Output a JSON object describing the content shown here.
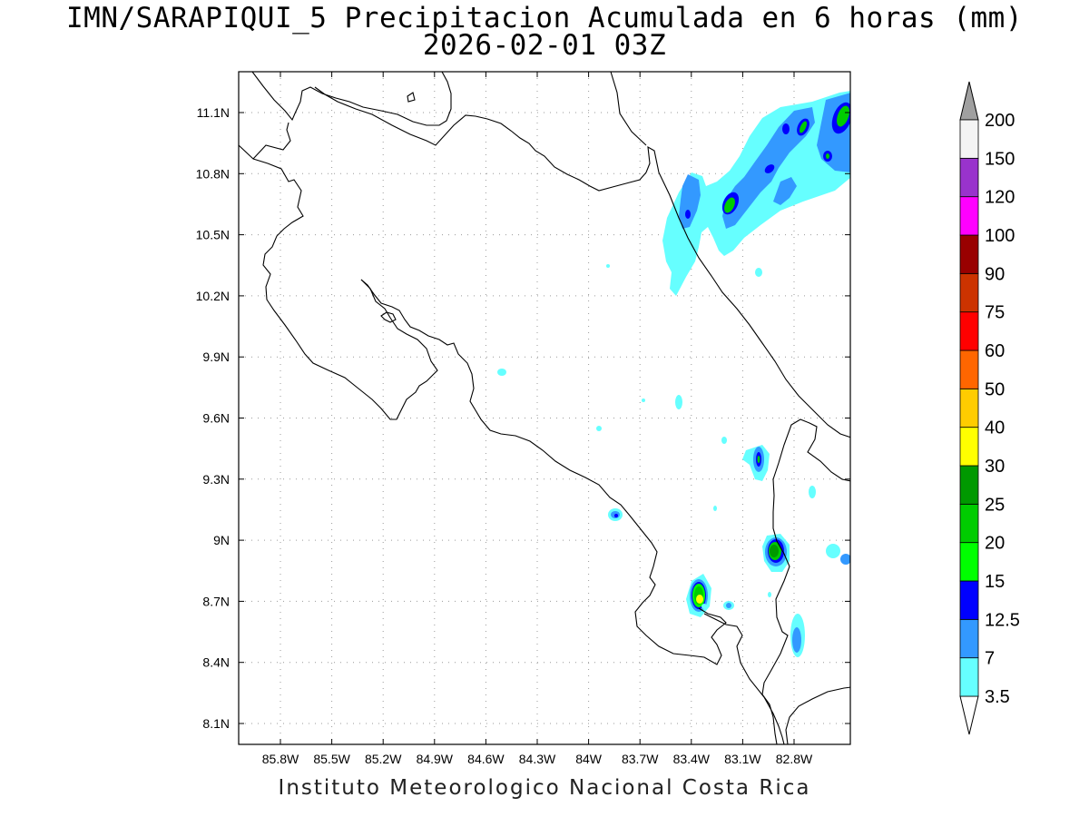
{
  "map": {
    "title_line1": "IMN/SARAPIQUI_5 Precipitacion Acumulada en 6 horas (mm)",
    "title_line2": "2026-02-01 03Z",
    "footer": "Instituto Meteorologico Nacional Costa Rica",
    "lon_ticks": [
      "85.8W",
      "85.5W",
      "85.2W",
      "84.9W",
      "84.6W",
      "84.3W",
      "84W",
      "83.7W",
      "83.4W",
      "83.1W",
      "82.8W"
    ],
    "lat_ticks": [
      "11.1N",
      "10.8N",
      "10.5N",
      "10.2N",
      "9.9N",
      "9.6N",
      "9.3N",
      "9N",
      "8.7N",
      "8.4N",
      "8.1N"
    ]
  },
  "colorbar": {
    "levels": [
      "3.5",
      "7",
      "12.5",
      "15",
      "20",
      "25",
      "30",
      "40",
      "50",
      "60",
      "75",
      "90",
      "100",
      "120",
      "150",
      "200"
    ],
    "colors": [
      "#66ffff",
      "#3399ff",
      "#0000ff",
      "#00ff00",
      "#00cc00",
      "#009900",
      "#ffff00",
      "#ffcc00",
      "#ff6600",
      "#ff0000",
      "#cc3300",
      "#990000",
      "#ff00ff",
      "#9933cc",
      "#f4f4f4"
    ],
    "arrow_colors": {
      "top": "#a0a0a0",
      "bottom": "#ffffff"
    }
  }
}
